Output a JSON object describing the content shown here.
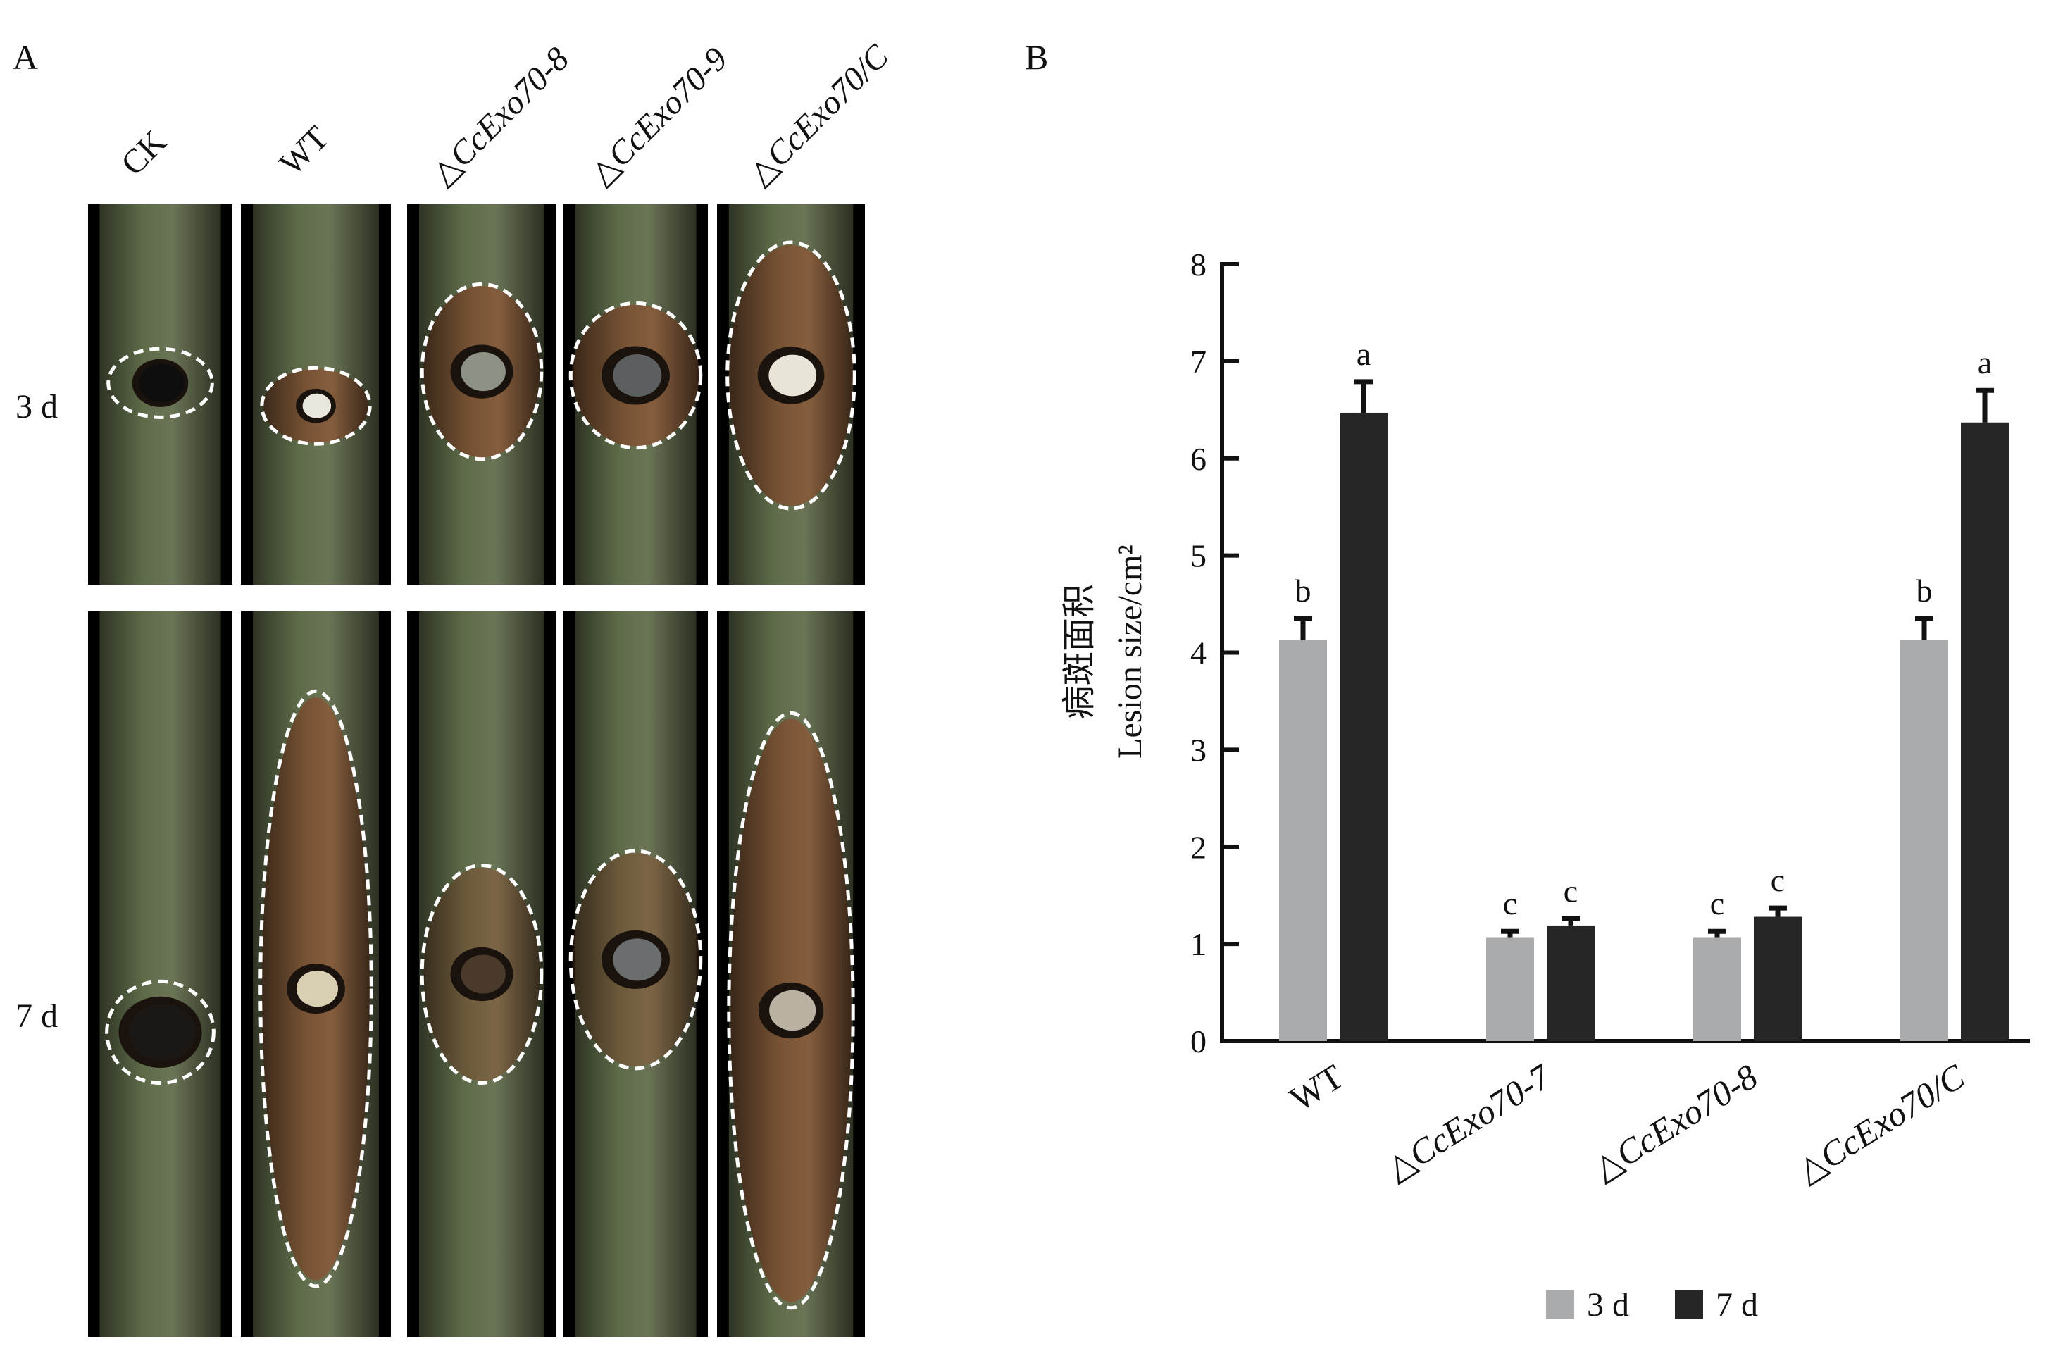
{
  "panel_a": {
    "letter": "A",
    "column_labels": [
      "CK",
      "WT",
      "△CcExo70-8",
      "△CcExo70-9",
      "△CcExo70/C"
    ],
    "row_labels": [
      "3 d",
      "7 d"
    ]
  },
  "panel_b": {
    "letter": "B"
  },
  "colors": {
    "bar_3d": "#a9aaab",
    "bar_7d": "#262626",
    "bark_green": "#4f5a3e",
    "bark_brown": "#5e3b24",
    "axis": "#111111"
  },
  "chart_data": {
    "type": "bar",
    "categories": [
      "WT",
      "△CcExo70-7",
      "△CcExo70-8",
      "△CcExo70/C"
    ],
    "ylabel_cn": "病斑面积",
    "ylabel": "Lesion size/cm²",
    "ylim": [
      0,
      8
    ],
    "yticks": [
      0,
      1,
      2,
      3,
      4,
      5,
      6,
      7,
      8
    ],
    "legend_position": "bottom",
    "series": [
      {
        "name": "3 d",
        "values": [
          4.13,
          1.07,
          1.07,
          4.13
        ],
        "errors": [
          0.22,
          0.06,
          0.06,
          0.22
        ],
        "letters": [
          "b",
          "c",
          "c",
          "b"
        ]
      },
      {
        "name": "7 d",
        "values": [
          6.47,
          1.19,
          1.28,
          6.37
        ],
        "errors": [
          0.32,
          0.07,
          0.09,
          0.33
        ],
        "letters": [
          "a",
          "c",
          "c",
          "a"
        ]
      }
    ]
  }
}
